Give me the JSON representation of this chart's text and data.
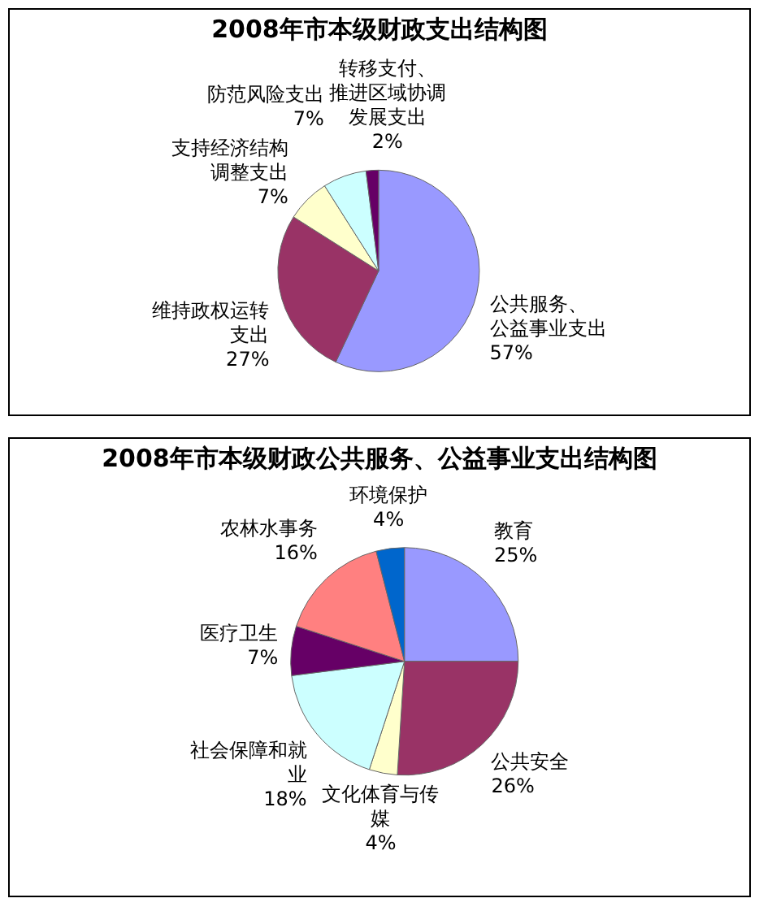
{
  "chart_data": [
    {
      "type": "pie",
      "title": "2008年市本级财政支出结构图",
      "categories": [
        "公共服务、公益事业支出",
        "维持政权运转支出",
        "支持经济结构调整支出",
        "防范风险支出",
        "转移支付、推进区域协调发展支出"
      ],
      "values": [
        57,
        27,
        7,
        7,
        2
      ],
      "colors": [
        "#9999ff",
        "#993366",
        "#ffffcc",
        "#ccffff",
        "#660066"
      ],
      "value_labels": [
        "57%",
        "27%",
        "7%",
        "7%",
        "2%"
      ]
    },
    {
      "type": "pie",
      "title": "2008年市本级财政公共服务、公益事业支出结构图",
      "categories": [
        "教育",
        "公共安全",
        "文化体育与传媒",
        "社会保障和就业",
        "医疗卫生",
        "农林水事务",
        "环境保护"
      ],
      "values": [
        25,
        26,
        4,
        18,
        7,
        16,
        4
      ],
      "colors": [
        "#9999ff",
        "#993366",
        "#ffffcc",
        "#ccffff",
        "#660066",
        "#ff8080",
        "#0066cc"
      ],
      "value_labels": [
        "25%",
        "26%",
        "4%",
        "18%",
        "7%",
        "16%",
        "4%"
      ]
    }
  ]
}
